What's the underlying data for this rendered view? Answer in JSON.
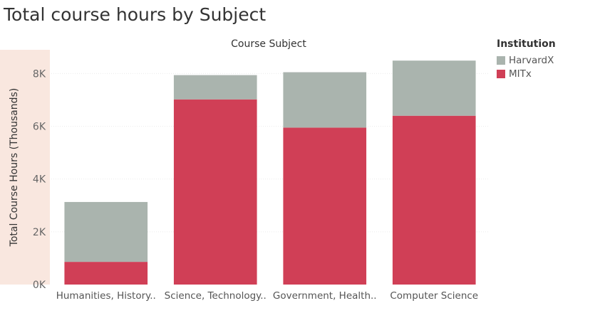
{
  "chart_data": {
    "type": "bar",
    "stacked": true,
    "title": "Total course hours by Subject",
    "column_header": "Course Subject",
    "ylabel": "Total Course Hours (Thousands)",
    "xlabel": "",
    "categories": [
      "Humanities, History..",
      "Science, Technology..",
      "Government, Health..",
      "Computer Science"
    ],
    "series": [
      {
        "name": "MITx",
        "color": "#d03f56",
        "values": [
          860,
          7020,
          5950,
          6400
        ]
      },
      {
        "name": "HarvardX",
        "color": "#aab4ae",
        "values": [
          2270,
          920,
          2100,
          2090
        ]
      }
    ],
    "ylim": [
      0,
      8900
    ],
    "yticks": [
      0,
      2000,
      4000,
      6000,
      8000
    ],
    "ytick_labels": [
      "0K",
      "2K",
      "4K",
      "6K",
      "8K"
    ],
    "grid": true,
    "legend": {
      "title": "Institution",
      "position": "right",
      "entries": [
        {
          "name": "HarvardX",
          "color": "#aab4ae"
        },
        {
          "name": "MITx",
          "color": "#d03f56"
        }
      ]
    }
  }
}
